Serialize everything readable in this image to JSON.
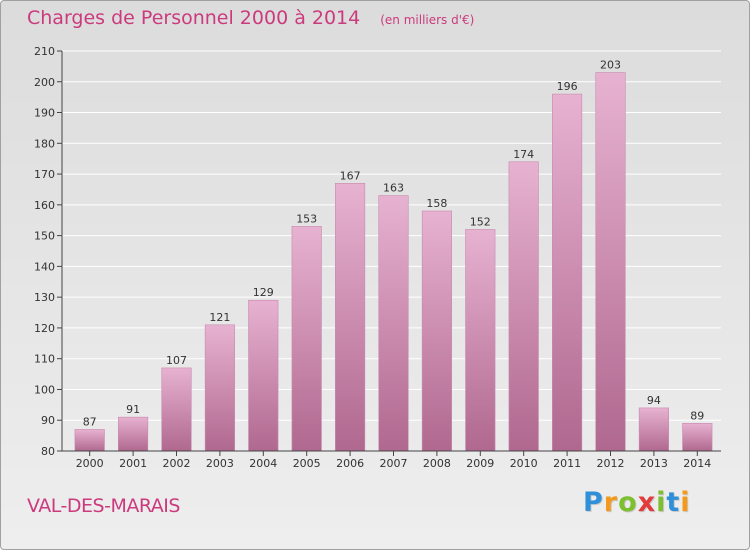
{
  "title": "Charges de Personnel 2000 à 2014",
  "subtitle": "(en milliers d'€)",
  "commune": "VAL-DES-MARAIS",
  "logo": {
    "letters": [
      "P",
      "r",
      "o",
      "x",
      "i",
      "t",
      "i"
    ],
    "colors": [
      "#2f8fd8",
      "#f39a1c",
      "#7cbf2f",
      "#e23b3b",
      "#7cbf2f",
      "#2f8fd8",
      "#f39a1c"
    ]
  },
  "colors": {
    "title": "#cc3a7e",
    "bar_top": "#e7b2d1",
    "bar_bottom": "#b0688f",
    "grid": "#ffffff",
    "axis": "#444444"
  },
  "chart_data": {
    "type": "bar",
    "categories": [
      "2000",
      "2001",
      "2002",
      "2003",
      "2004",
      "2005",
      "2006",
      "2007",
      "2008",
      "2009",
      "2010",
      "2011",
      "2012",
      "2013",
      "2014"
    ],
    "values": [
      87,
      91,
      107,
      121,
      129,
      153,
      167,
      163,
      158,
      152,
      174,
      196,
      203,
      94,
      89
    ],
    "ylim": [
      80,
      210
    ],
    "yticks": [
      80,
      90,
      100,
      110,
      120,
      130,
      140,
      150,
      160,
      170,
      180,
      190,
      200,
      210
    ],
    "grid": true,
    "data_labels": true
  }
}
